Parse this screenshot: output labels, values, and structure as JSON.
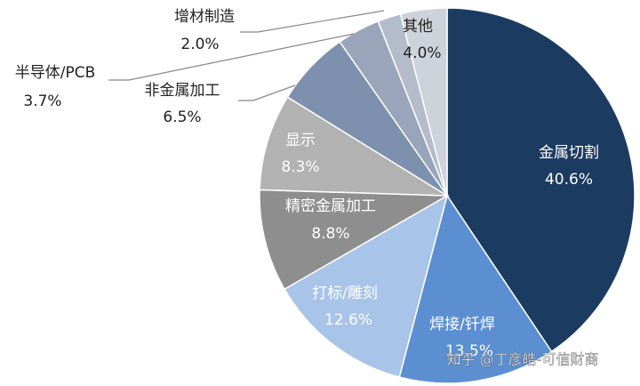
{
  "chart_data": {
    "type": "pie",
    "categories": [
      "金属切割",
      "焊接/钎焊",
      "打标/雕刻",
      "精密金属加工",
      "显示",
      "非金属加工",
      "半导体/PCB",
      "增材制造",
      "其他"
    ],
    "values": [
      40.6,
      13.5,
      12.6,
      8.8,
      8.3,
      6.5,
      3.7,
      2.0,
      4.0
    ],
    "value_labels": [
      "40.6%",
      "13.5%",
      "12.6%",
      "8.8%",
      "8.3%",
      "6.5%",
      "3.7%",
      "2.0%",
      "4.0%"
    ],
    "colors": [
      "#1c3b60",
      "#5b8fd2",
      "#a8c4e8",
      "#8e8e8e",
      "#b2b2b2",
      "#7d91af",
      "#9aa5bc",
      "#b4bbcb",
      "#ced2db"
    ],
    "watermark": "知乎 @丁彦皓-可信财商"
  }
}
